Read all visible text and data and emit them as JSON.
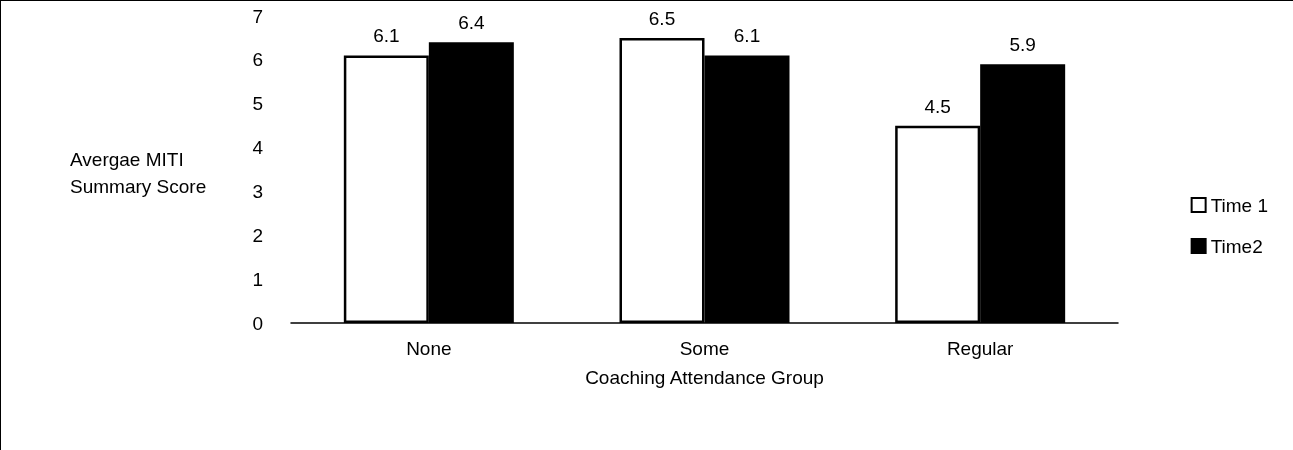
{
  "chart_data": {
    "type": "bar",
    "xlabel": "Coaching Attendance Group",
    "ylabel": "Avergae MITI Summary Score",
    "categories": [
      "None",
      "Some",
      "Regular"
    ],
    "series": [
      {
        "name": "Time 1",
        "color": "#ffffff",
        "values": [
          6.1,
          6.5,
          4.5
        ]
      },
      {
        "name": "Time2",
        "color": "#000000",
        "values": [
          6.4,
          6.1,
          5.9
        ]
      }
    ],
    "ylim": [
      0,
      7
    ],
    "yticks": [
      0,
      1,
      2,
      3,
      4,
      5,
      6,
      7
    ],
    "grid": false,
    "legend": "right",
    "data_labels": true
  }
}
